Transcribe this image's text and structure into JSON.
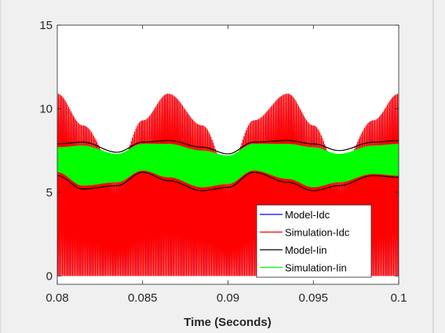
{
  "chart_data": {
    "type": "line",
    "title": "",
    "xlabel": "Time (Seconds)",
    "ylabel": "",
    "xlim": [
      0.08,
      0.1
    ],
    "ylim": [
      -0.5,
      15
    ],
    "xticks": [
      0.08,
      0.085,
      0.09,
      0.095,
      0.1
    ],
    "xtick_labels": [
      "0.08",
      "0.085",
      "0.09",
      "0.095",
      "0.1"
    ],
    "yticks": [
      0,
      5,
      10,
      15
    ],
    "ytick_labels": [
      "0",
      "5",
      "10",
      "15"
    ],
    "grid": false,
    "legend_position": "bottom-right",
    "series": [
      {
        "name": "Model-Idc",
        "color": "#0000ff",
        "style": "rectified pulse train, same shape as Simulation-Idc (hidden underneath)",
        "x": [
          0.08,
          0.0815,
          0.0835,
          0.085,
          0.0865,
          0.0885,
          0.09,
          0.0915,
          0.0935,
          0.095,
          0.0965,
          0.0985,
          0.1
        ],
        "upper": [
          10.9,
          9.0,
          6.3,
          9.3,
          10.9,
          9.0,
          6.3,
          9.3,
          10.9,
          9.0,
          6.3,
          9.3,
          10.9
        ],
        "lower": [
          0.0,
          0.0,
          0.0,
          0.0,
          0.0,
          0.0,
          0.0,
          0.0,
          0.0,
          0.0,
          0.0,
          0.0,
          0.0
        ]
      },
      {
        "name": "Simulation-Idc",
        "color": "#ff0000",
        "style": "high-frequency pulse train between 0 and an envelope",
        "x": [
          0.08,
          0.0815,
          0.0835,
          0.085,
          0.0865,
          0.0885,
          0.09,
          0.0915,
          0.0935,
          0.095,
          0.0965,
          0.0985,
          0.1
        ],
        "upper": [
          10.9,
          9.0,
          6.3,
          9.3,
          10.9,
          9.0,
          6.3,
          9.3,
          10.9,
          9.0,
          6.3,
          9.3,
          10.9
        ],
        "lower": [
          0.0,
          0.0,
          0.0,
          0.0,
          0.0,
          0.0,
          0.0,
          0.0,
          0.0,
          0.0,
          0.0,
          0.0,
          0.0
        ]
      },
      {
        "name": "Model-Iin",
        "color": "#000000",
        "style": "envelope around the Simulation-Iin band",
        "x": [
          0.08,
          0.0815,
          0.0835,
          0.085,
          0.0865,
          0.0885,
          0.09,
          0.0915,
          0.0935,
          0.095,
          0.0965,
          0.0985,
          0.1
        ],
        "upper": [
          7.9,
          8.0,
          7.4,
          8.0,
          8.1,
          7.7,
          7.3,
          8.0,
          8.1,
          7.9,
          7.5,
          8.0,
          8.1
        ],
        "lower": [
          6.0,
          5.2,
          5.4,
          6.2,
          5.7,
          5.1,
          5.3,
          6.2,
          5.6,
          5.1,
          5.4,
          6.0,
          5.9
        ]
      },
      {
        "name": "Simulation-Iin",
        "color": "#00ff00",
        "style": "high-frequency oscillation band",
        "x": [
          0.08,
          0.0815,
          0.0835,
          0.085,
          0.0865,
          0.0885,
          0.09,
          0.0915,
          0.0935,
          0.095,
          0.0965,
          0.0985,
          0.1
        ],
        "upper": [
          7.7,
          7.8,
          7.3,
          7.9,
          7.9,
          7.5,
          7.2,
          7.9,
          7.9,
          7.7,
          7.3,
          7.8,
          7.9
        ],
        "lower": [
          6.2,
          5.4,
          5.6,
          6.3,
          5.9,
          5.3,
          5.5,
          6.3,
          5.8,
          5.3,
          5.6,
          6.1,
          6.0
        ]
      }
    ]
  }
}
